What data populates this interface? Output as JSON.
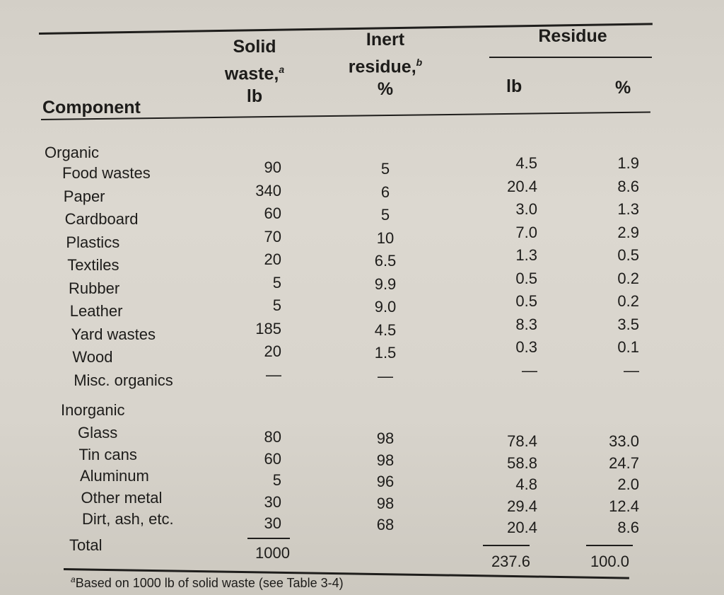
{
  "table": {
    "headers": {
      "component": "Component",
      "solid_waste": [
        "Solid",
        "waste,",
        "lb"
      ],
      "solid_waste_note": "a",
      "inert_residue": [
        "Inert",
        "residue,",
        "%"
      ],
      "inert_residue_note": "b",
      "residue_group": "Residue",
      "residue_lb": "lb",
      "residue_pct": "%"
    },
    "organic_label": "Organic",
    "organic_rows": [
      {
        "name": "Food wastes",
        "solid": "90",
        "inert": "5",
        "res_lb": "4.5",
        "res_pct": "1.9"
      },
      {
        "name": "Paper",
        "solid": "340",
        "inert": "6",
        "res_lb": "20.4",
        "res_pct": "8.6"
      },
      {
        "name": "Cardboard",
        "solid": "60",
        "inert": "5",
        "res_lb": "3.0",
        "res_pct": "1.3"
      },
      {
        "name": "Plastics",
        "solid": "70",
        "inert": "10",
        "res_lb": "7.0",
        "res_pct": "2.9"
      },
      {
        "name": "Textiles",
        "solid": "20",
        "inert": "6.5",
        "res_lb": "1.3",
        "res_pct": "0.5"
      },
      {
        "name": "Rubber",
        "solid": "5",
        "inert": "9.9",
        "res_lb": "0.5",
        "res_pct": "0.2"
      },
      {
        "name": "Leather",
        "solid": "5",
        "inert": "9.0",
        "res_lb": "0.5",
        "res_pct": "0.2"
      },
      {
        "name": "Yard wastes",
        "solid": "185",
        "inert": "4.5",
        "res_lb": "8.3",
        "res_pct": "3.5"
      },
      {
        "name": "Wood",
        "solid": "20",
        "inert": "1.5",
        "res_lb": "0.3",
        "res_pct": "0.1"
      },
      {
        "name": "Misc. organics",
        "solid": "—",
        "inert": "—",
        "res_lb": "—",
        "res_pct": "—"
      }
    ],
    "inorganic_label": "Inorganic",
    "inorganic_rows": [
      {
        "name": "Glass",
        "solid": "80",
        "inert": "98",
        "res_lb": "78.4",
        "res_pct": "33.0"
      },
      {
        "name": "Tin cans",
        "solid": "60",
        "inert": "98",
        "res_lb": "58.8",
        "res_pct": "24.7"
      },
      {
        "name": "Aluminum",
        "solid": "5",
        "inert": "96",
        "res_lb": "4.8",
        "res_pct": "2.0"
      },
      {
        "name": "Other metal",
        "solid": "30",
        "inert": "98",
        "res_lb": "29.4",
        "res_pct": "12.4"
      },
      {
        "name": "Dirt, ash, etc.",
        "solid": "30",
        "inert": "68",
        "res_lb": "20.4",
        "res_pct": "8.6"
      }
    ],
    "total": {
      "label": "Total",
      "solid": "1000",
      "res_lb": "237.6",
      "res_pct": "100.0"
    },
    "footnote_mark": "a",
    "footnote": "Based on 1000 lb of solid waste (see Table 3-4)"
  }
}
